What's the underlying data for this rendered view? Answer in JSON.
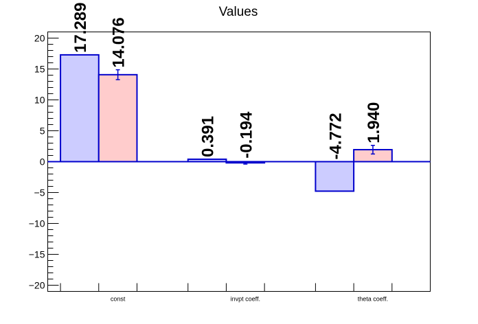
{
  "chart_data": {
    "type": "bar",
    "title": "Values",
    "categories": [
      "const",
      "invpt coeff.",
      "theta coeff."
    ],
    "series": [
      {
        "values": [
          17.289,
          0.391,
          -4.772
        ],
        "errors": [
          0,
          0,
          0
        ],
        "color": "#ccccff",
        "labels": [
          "17.289",
          "0.391",
          "-4.772"
        ]
      },
      {
        "values": [
          14.076,
          -0.194,
          1.94
        ],
        "errors": [
          0.8,
          0.2,
          0.7
        ],
        "color": "#ffcccc",
        "labels": [
          "14.076",
          "-0.194",
          "1.940"
        ]
      }
    ],
    "ylim": [
      -21,
      21
    ],
    "yticks": [
      -20,
      -15,
      -10,
      -5,
      0,
      5,
      10,
      15,
      20
    ],
    "ytick_labels": [
      "−20",
      "−15",
      "−10",
      "−5",
      "0",
      "5",
      "10",
      "15",
      "20"
    ],
    "outline_color": "#0000cc",
    "grid": false,
    "legend": "none"
  }
}
